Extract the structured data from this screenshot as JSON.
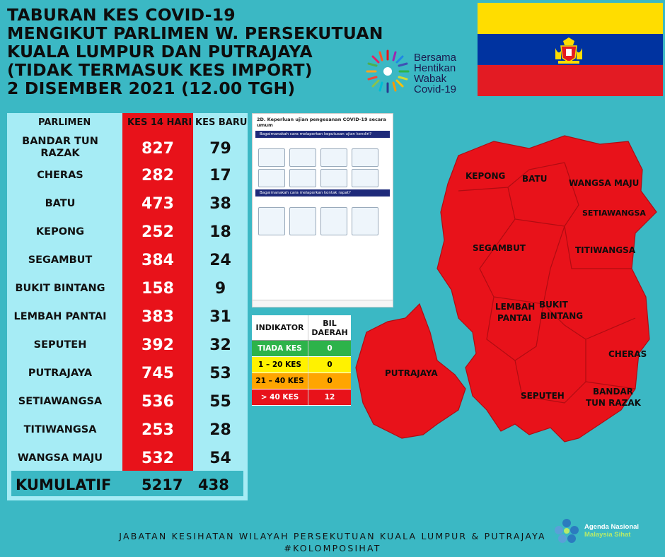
{
  "title": {
    "lines": [
      "TABURAN KES COVID-19",
      "MENGIKUT PARLIMEN W. PERSEKUTUAN",
      "KUALA LUMPUR DAN PUTRAJAYA",
      "(TIDAK TERMASUK KES IMPORT)",
      "2 DISEMBER 2021 (12.00 TGH)"
    ]
  },
  "campaign": {
    "lines": [
      "Bersama",
      "Hentikan",
      "Wabak",
      "Covid-19"
    ],
    "icon": "sunburst-logo-icon"
  },
  "flag": {
    "colors": [
      "#ffdd00",
      "#0033a0",
      "#e31b23"
    ],
    "icon": "coat-of-arms-icon"
  },
  "table": {
    "headers": {
      "parlimen": "PARLIMEN",
      "kes14": "KES 14 HARI",
      "kesbaru": "KES BARU"
    },
    "rows": [
      {
        "name": "BANDAR TUN RAZAK",
        "kes14": "827",
        "kesbaru": "79"
      },
      {
        "name": "CHERAS",
        "kes14": "282",
        "kesbaru": "17"
      },
      {
        "name": "BATU",
        "kes14": "473",
        "kesbaru": "38"
      },
      {
        "name": "KEPONG",
        "kes14": "252",
        "kesbaru": "18"
      },
      {
        "name": "SEGAMBUT",
        "kes14": "384",
        "kesbaru": "24"
      },
      {
        "name": "BUKIT BINTANG",
        "kes14": "158",
        "kesbaru": "9"
      },
      {
        "name": "LEMBAH PANTAI",
        "kes14": "383",
        "kesbaru": "31"
      },
      {
        "name": "SEPUTEH",
        "kes14": "392",
        "kesbaru": "32"
      },
      {
        "name": "PUTRAJAYA",
        "kes14": "745",
        "kesbaru": "53"
      },
      {
        "name": "SETIAWANGSA",
        "kes14": "536",
        "kesbaru": "55"
      },
      {
        "name": "TITIWANGSA",
        "kes14": "253",
        "kesbaru": "28"
      },
      {
        "name": "WANGSA MAJU",
        "kes14": "532",
        "kesbaru": "54"
      }
    ],
    "total": {
      "label": "KUMULATIF",
      "kes14": "5217",
      "kesbaru": "438"
    }
  },
  "doc": {
    "title": "2D. Keperluan ujian pengesanan COVID-19 secara umum",
    "section1": "Bagaimanakah cara melaporkan keputusan ujian kendiri?",
    "section2": "Bagaimanakah cara melaporkan kontak rapat?"
  },
  "legend": {
    "header_ind": "INDIKATOR",
    "header_bil": "BIL DAERAH",
    "rows": [
      {
        "label": "TIADA KES",
        "count": "0",
        "color": "#2db34a",
        "text": "#ffffff"
      },
      {
        "label": "1 – 20 KES",
        "count": "0",
        "color": "#fff200",
        "text": "#111111"
      },
      {
        "label": "21 – 40 KES",
        "count": "0",
        "color": "#ffa500",
        "text": "#111111"
      },
      {
        "label": "> 40 KES",
        "count": "12",
        "color": "#e8121a",
        "text": "#ffffff"
      }
    ]
  },
  "map": {
    "fill": "#e8121a",
    "labels": {
      "kepong": "KEPONG",
      "batu": "BATU",
      "wangsa_maju": "WANGSA MAJU",
      "setiawangsa": "SETIAWANGSA",
      "segambut": "SEGAMBUT",
      "titiwangsa": "TITIWANGSA",
      "lembah": "LEMBAH",
      "pantai": "PANTAI",
      "bukit": "BUKIT",
      "bintang": "BINTANG",
      "cheras": "CHERAS",
      "seputeh": "SEPUTEH",
      "bandar": "BANDAR",
      "tun_razak": "TUN RAZAK",
      "putrajaya": "PUTRAJAYA"
    }
  },
  "footer": {
    "line1": "JABATAN KESIHATAN WILAYAH PERSEKUTUAN KUALA LUMPUR & PUTRAJAYA",
    "line2": "#KOLOMPOSIHAT"
  },
  "agenda": {
    "line1": "Agenda Nasional",
    "line2": "Malaysia Sihat"
  }
}
